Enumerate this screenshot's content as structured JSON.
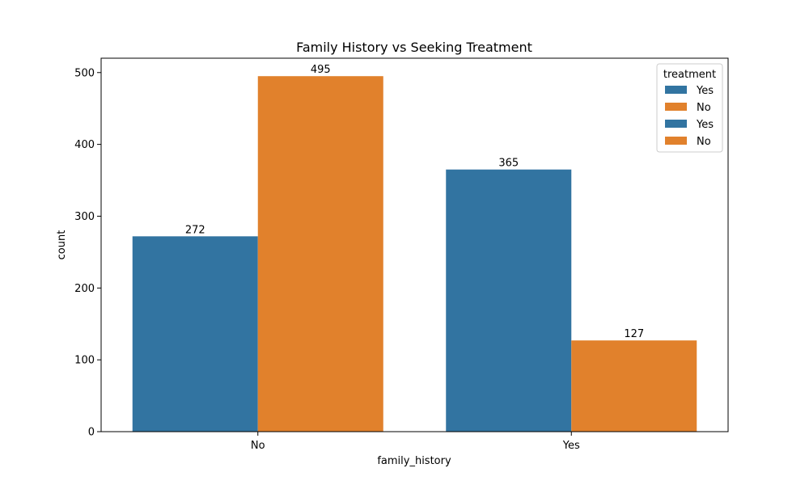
{
  "chart_data": {
    "type": "bar",
    "title": "Family History vs Seeking Treatment",
    "xlabel": "family_history",
    "ylabel": "count",
    "categories": [
      "No",
      "Yes"
    ],
    "series": [
      {
        "name": "Yes",
        "color": "#3274a1",
        "values": [
          272,
          365
        ]
      },
      {
        "name": "No",
        "color": "#e1812c",
        "values": [
          495,
          127
        ]
      }
    ],
    "ylim": [
      0,
      520
    ],
    "yticks": [
      0,
      100,
      200,
      300,
      400,
      500
    ],
    "grid": false,
    "legend": {
      "title": "treatment",
      "position": "top-right",
      "entries": [
        {
          "label": "Yes",
          "color": "#3274a1"
        },
        {
          "label": "No",
          "color": "#e1812c"
        },
        {
          "label": "Yes",
          "color": "#3274a1"
        },
        {
          "label": "No",
          "color": "#e1812c"
        }
      ]
    }
  }
}
